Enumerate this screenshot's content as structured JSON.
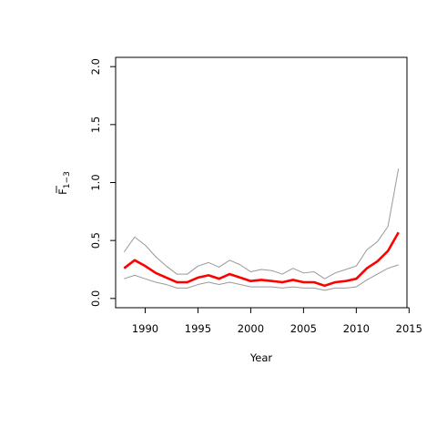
{
  "chart_data": {
    "type": "line",
    "title": "",
    "xlabel": "Year",
    "ylabel_main": "F",
    "ylabel_sub": "1−3",
    "xlim": [
      1987.2,
      2014.8
    ],
    "ylim": [
      -0.08,
      2.08
    ],
    "xticks": [
      1990,
      1995,
      2000,
      2005,
      2010,
      2015
    ],
    "yticks": [
      0.0,
      0.5,
      1.0,
      1.5,
      2.0
    ],
    "ytick_labels": [
      "0.0",
      "0.5",
      "1.0",
      "1.5",
      "2.0"
    ],
    "grid": false,
    "x": [
      1988,
      1989,
      1990,
      1991,
      1992,
      1993,
      1994,
      1995,
      1996,
      1997,
      1998,
      1999,
      2000,
      2001,
      2002,
      2003,
      2004,
      2005,
      2006,
      2007,
      2008,
      2009,
      2010,
      2011,
      2012,
      2013,
      2014
    ],
    "series": [
      {
        "role": "estimate",
        "color": "#ff0000",
        "values": [
          0.26,
          0.33,
          0.28,
          0.22,
          0.18,
          0.14,
          0.14,
          0.18,
          0.2,
          0.17,
          0.21,
          0.18,
          0.15,
          0.16,
          0.15,
          0.14,
          0.16,
          0.14,
          0.14,
          0.11,
          0.14,
          0.15,
          0.17,
          0.26,
          0.32,
          0.41,
          0.57
        ]
      },
      {
        "role": "upper-bound",
        "color": "#999999",
        "values": [
          0.4,
          0.53,
          0.46,
          0.36,
          0.28,
          0.21,
          0.21,
          0.28,
          0.31,
          0.27,
          0.33,
          0.29,
          0.23,
          0.25,
          0.24,
          0.21,
          0.26,
          0.22,
          0.23,
          0.17,
          0.22,
          0.25,
          0.28,
          0.42,
          0.49,
          0.62,
          1.12
        ]
      },
      {
        "role": "lower-bound",
        "color": "#999999",
        "values": [
          0.17,
          0.2,
          0.17,
          0.14,
          0.12,
          0.09,
          0.09,
          0.12,
          0.14,
          0.12,
          0.14,
          0.12,
          0.1,
          0.1,
          0.1,
          0.09,
          0.1,
          0.09,
          0.09,
          0.07,
          0.09,
          0.09,
          0.1,
          0.16,
          0.21,
          0.26,
          0.29
        ]
      }
    ]
  }
}
